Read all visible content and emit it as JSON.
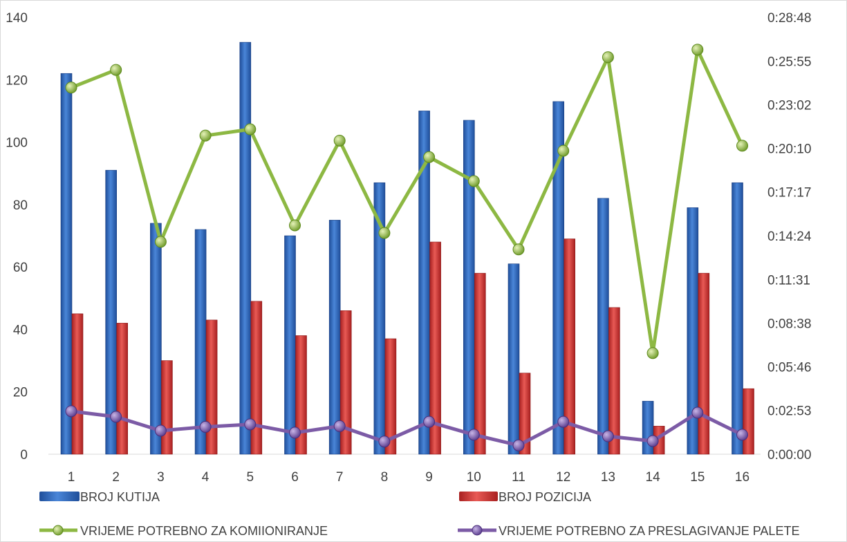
{
  "chart_data": {
    "type": "bar",
    "categories": [
      "1",
      "2",
      "3",
      "4",
      "5",
      "6",
      "7",
      "8",
      "9",
      "10",
      "11",
      "12",
      "13",
      "14",
      "15",
      "16"
    ],
    "series": [
      {
        "name": "BROJ KUTIJA",
        "kind": "bar",
        "axis": "left",
        "color": "#2E63B8",
        "values": [
          122,
          91,
          74,
          72,
          132,
          70,
          75,
          87,
          110,
          107,
          61,
          113,
          82,
          17,
          79,
          87
        ]
      },
      {
        "name": "BROJ POZICIJA",
        "kind": "bar",
        "axis": "left",
        "color": "#D0312D",
        "values": [
          45,
          42,
          30,
          43,
          49,
          38,
          46,
          37,
          68,
          58,
          26,
          69,
          47,
          9,
          58,
          21
        ]
      },
      {
        "name": "VRIJEME POTREBNO ZA KOMIIONIRANJE",
        "kind": "line",
        "axis": "right",
        "color": "#8DB843",
        "values": [
          "0:24:10",
          "0:25:20",
          "0:14:00",
          "0:21:00",
          "0:21:25",
          "0:15:05",
          "0:20:40",
          "0:14:35",
          "0:19:35",
          "0:18:00",
          "0:13:30",
          "0:20:00",
          "0:26:10",
          "0:06:40",
          "0:26:40",
          "0:20:20"
        ]
      },
      {
        "name": "VRIJEME POTREBNO ZA PRESLAGIVANJE PALETE",
        "kind": "line",
        "axis": "right",
        "color": "#7C5BA6",
        "values": [
          "0:02:50",
          "0:02:28",
          "0:01:33",
          "0:01:48",
          "0:01:58",
          "0:01:25",
          "0:01:51",
          "0:00:50",
          "0:02:08",
          "0:01:17",
          "0:00:35",
          "0:02:08",
          "0:01:11",
          "0:00:52",
          "0:02:44",
          "0:01:17"
        ]
      }
    ],
    "y_left": {
      "ylim": [
        0,
        140
      ],
      "ticks": [
        "0",
        "20",
        "40",
        "60",
        "80",
        "100",
        "120",
        "140"
      ]
    },
    "y_right": {
      "ylim": [
        "0:00:00",
        "0:28:48"
      ],
      "ticks": [
        "0:00:00",
        "0:02:53",
        "0:05:46",
        "0:08:38",
        "0:11:31",
        "0:14:24",
        "0:17:17",
        "0:20:10",
        "0:23:02",
        "0:25:55",
        "0:28:48"
      ]
    },
    "legend": {
      "placement": "bottom"
    },
    "grid": false
  }
}
